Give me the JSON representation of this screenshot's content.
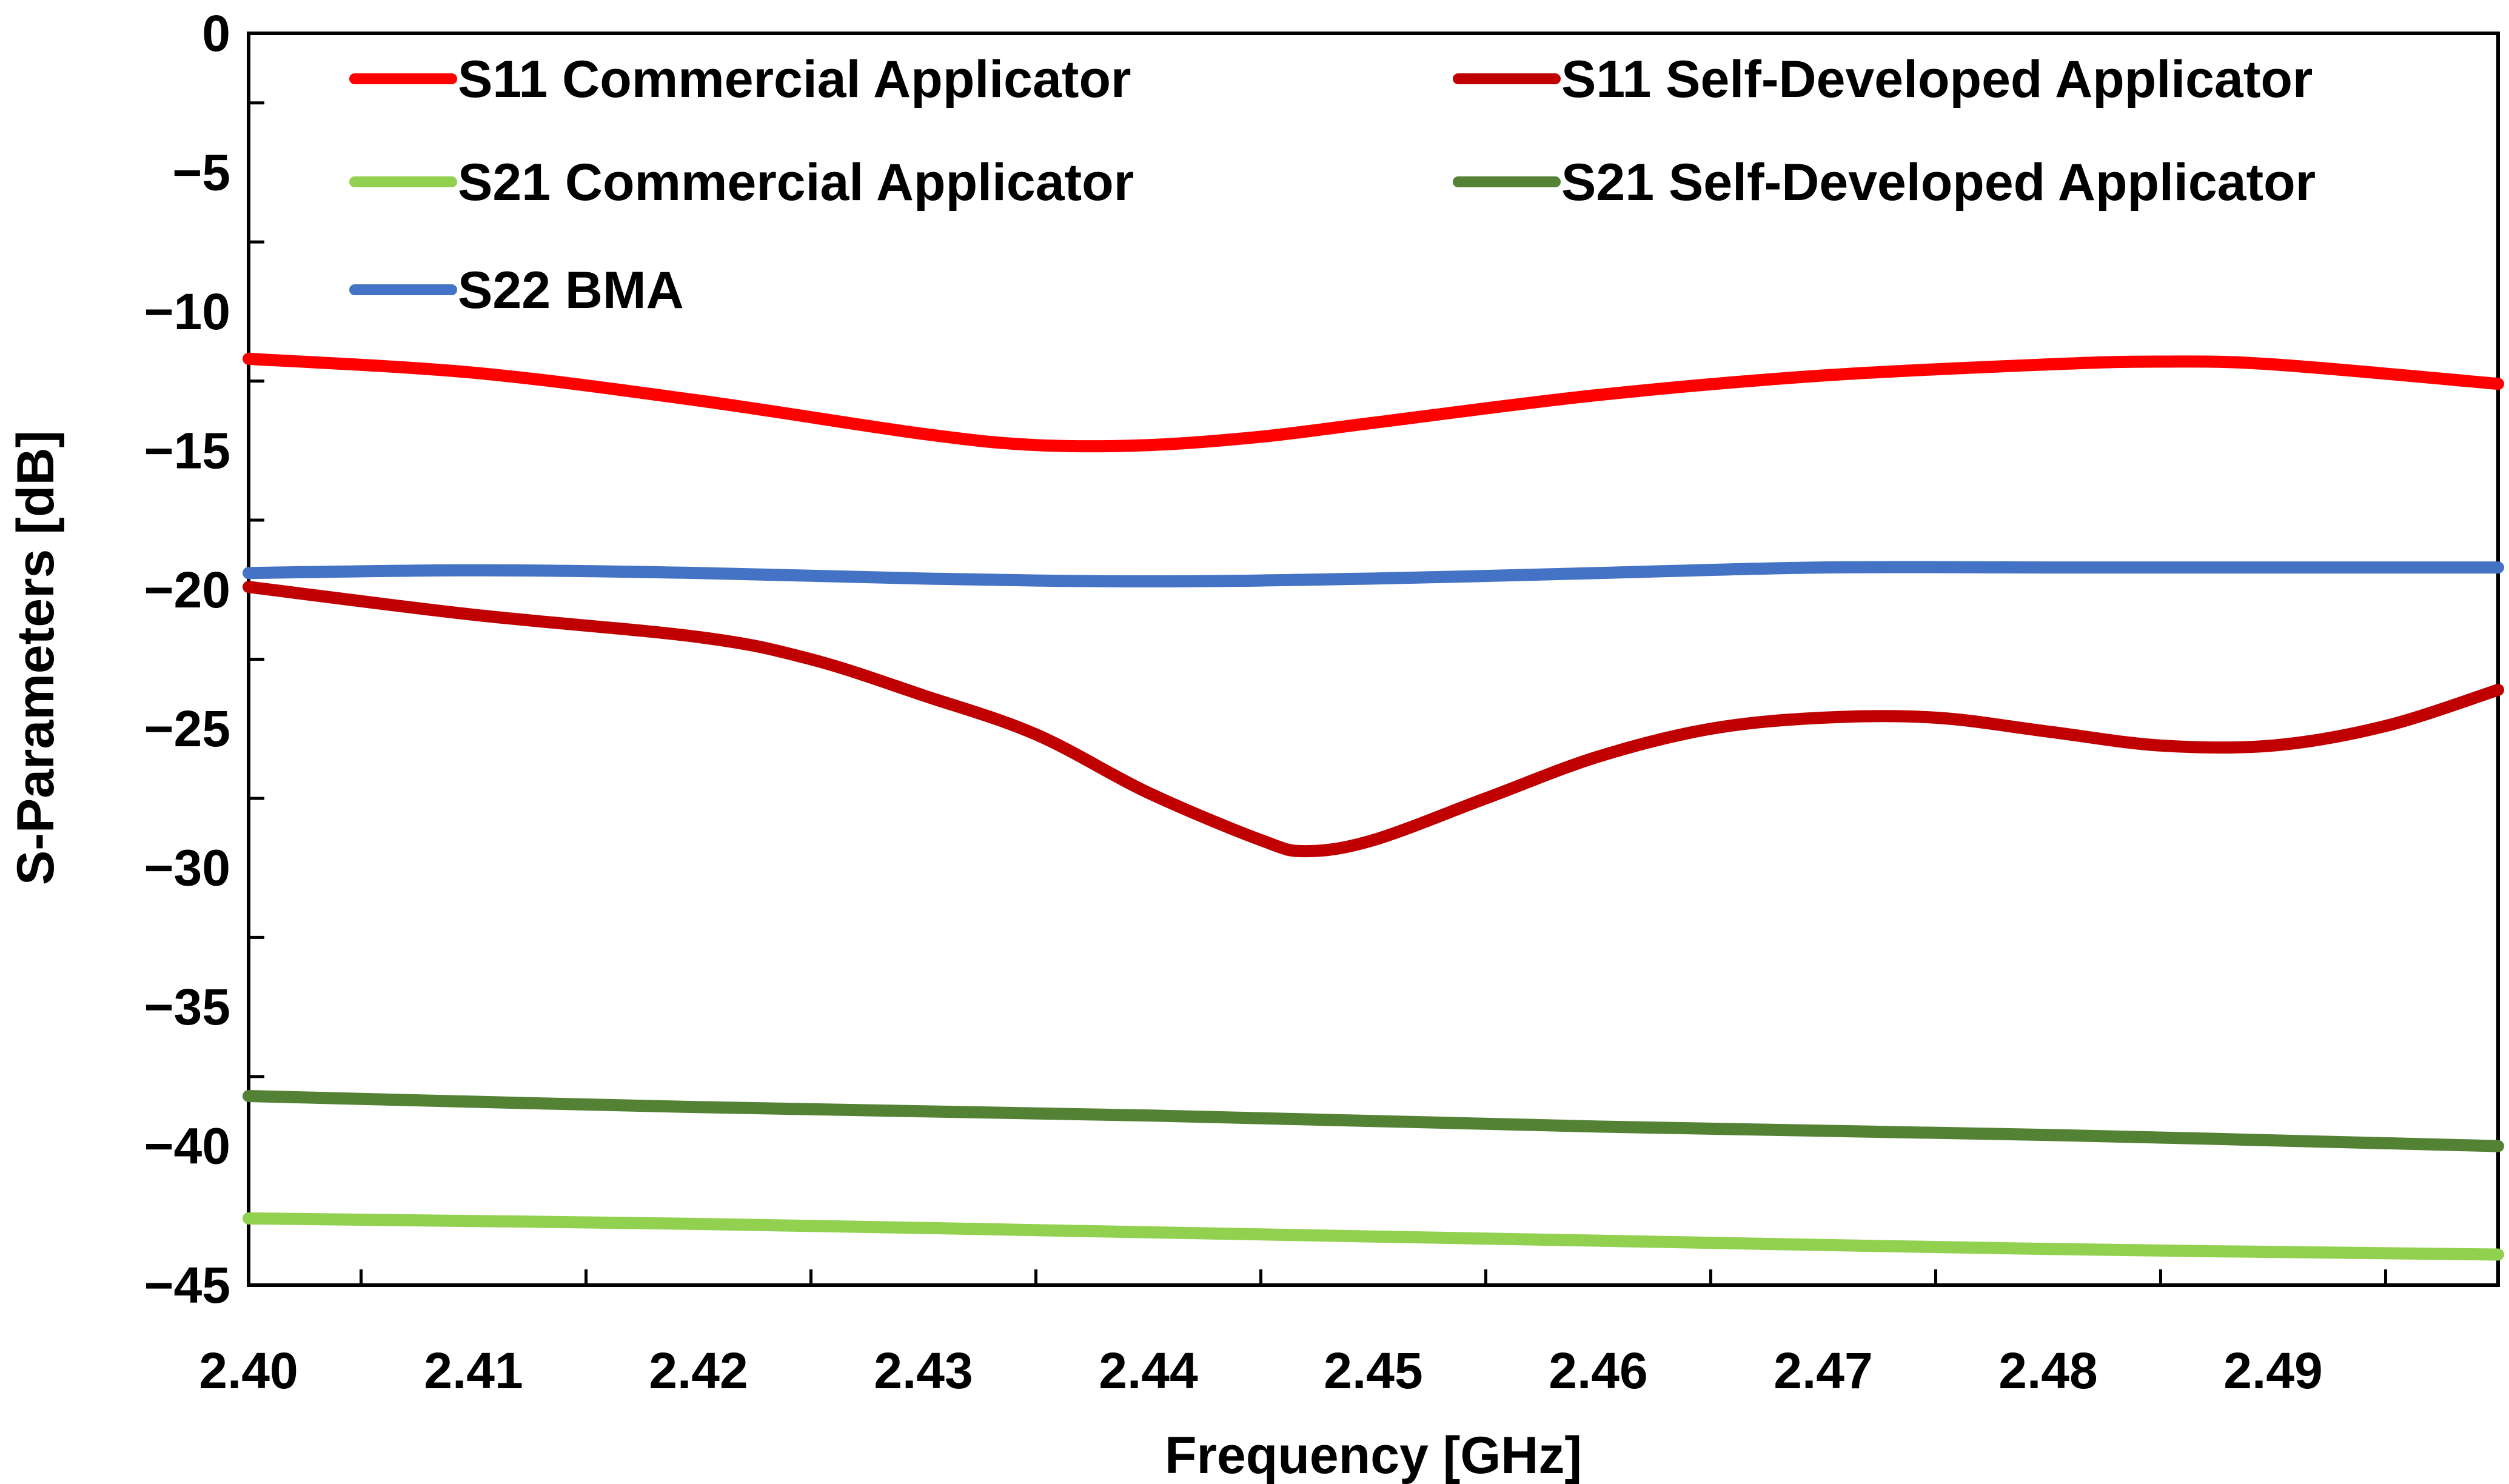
{
  "chart_data": {
    "type": "line",
    "title": "",
    "xlabel": "Frequency [GHz]",
    "ylabel": "S-Parameters [dB]",
    "xlim": [
      2.4,
      2.5
    ],
    "ylim": [
      -45,
      0
    ],
    "x_ticks": [
      "2.40",
      "2.41",
      "2.42",
      "2.43",
      "2.44",
      "2.45",
      "2.46",
      "2.47",
      "2.48",
      "2.49"
    ],
    "y_ticks": [
      "0",
      "−5",
      "−10",
      "−15",
      "−20",
      "−25",
      "−30",
      "−35",
      "−40",
      "−45"
    ],
    "grid": false,
    "legend_position": "top",
    "series": [
      {
        "name": "S11 Commercial Applicator",
        "color": "#ff0000",
        "x": [
          2.4,
          2.41,
          2.42,
          2.43,
          2.435,
          2.44,
          2.445,
          2.45,
          2.46,
          2.47,
          2.48,
          2.485,
          2.49,
          2.5
        ],
        "values": [
          -11.7,
          -12.2,
          -13.2,
          -14.4,
          -14.8,
          -14.8,
          -14.5,
          -14.0,
          -13.0,
          -12.3,
          -11.9,
          -11.8,
          -11.9,
          -12.6
        ]
      },
      {
        "name": "S11 Self-Developed Applicator",
        "color": "#c00000",
        "x": [
          2.4,
          2.41,
          2.42,
          2.425,
          2.43,
          2.435,
          2.44,
          2.445,
          2.447,
          2.45,
          2.455,
          2.46,
          2.465,
          2.47,
          2.475,
          2.48,
          2.485,
          2.49,
          2.495,
          2.5
        ],
        "values": [
          -19.9,
          -20.9,
          -21.7,
          -22.5,
          -23.8,
          -25.2,
          -27.3,
          -29.0,
          -29.4,
          -29.0,
          -27.5,
          -26.0,
          -25.0,
          -24.6,
          -24.6,
          -25.1,
          -25.6,
          -25.6,
          -24.9,
          -23.6
        ]
      },
      {
        "name": "S21 Commercial Applicator",
        "color": "#92d050",
        "x": [
          2.4,
          2.42,
          2.44,
          2.46,
          2.48,
          2.5
        ],
        "values": [
          -42.6,
          -42.8,
          -43.1,
          -43.4,
          -43.7,
          -43.9
        ]
      },
      {
        "name": "S21 Self-Developed Applicator",
        "color": "#548235",
        "x": [
          2.4,
          2.42,
          2.44,
          2.46,
          2.48,
          2.5
        ],
        "values": [
          -38.2,
          -38.6,
          -38.9,
          -39.3,
          -39.6,
          -40.0
        ]
      },
      {
        "name": "S22 BMA",
        "color": "#4472c4",
        "x": [
          2.4,
          2.41,
          2.42,
          2.43,
          2.44,
          2.45,
          2.46,
          2.47,
          2.48,
          2.49,
          2.5
        ],
        "values": [
          -19.4,
          -19.3,
          -19.4,
          -19.6,
          -19.7,
          -19.6,
          -19.4,
          -19.2,
          -19.2,
          -19.2,
          -19.2
        ]
      }
    ]
  }
}
